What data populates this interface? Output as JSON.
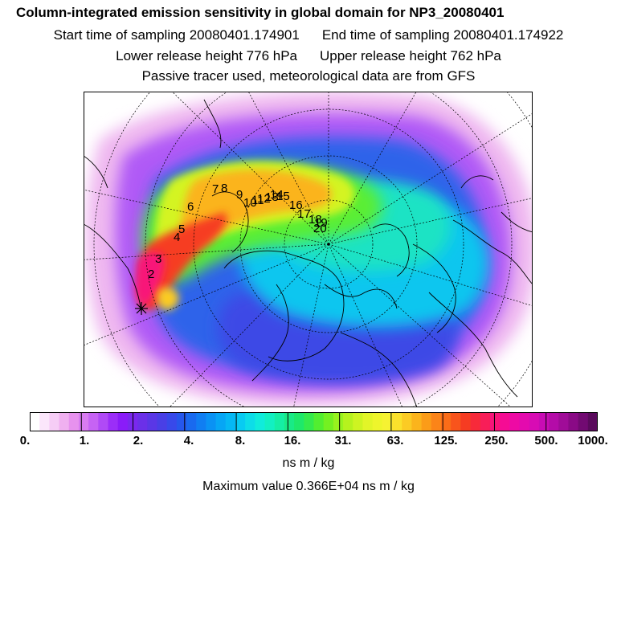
{
  "header": {
    "title": "Column-integrated emission sensitivity in global domain for NP3_20080401",
    "start_time": "Start time of sampling 20080401.174901",
    "end_time": "End time of sampling 20080401.174922",
    "lower_height": "Lower release height  776 hPa",
    "upper_height": "Upper release height  762 hPa",
    "note": "Passive tracer used, meteorological data are from GFS"
  },
  "map": {
    "trajectory_labels": [
      "2",
      "3",
      "4",
      "5",
      "6",
      "7",
      "8",
      "9",
      "10",
      "11",
      "12",
      "13",
      "14",
      "15",
      "16",
      "17",
      "18",
      "19",
      "20"
    ],
    "release_marker": "star-icon",
    "outline_color": "#000000"
  },
  "colorbar": {
    "colors": [
      "#ffffff",
      "#fbe6fb",
      "#f6cdf6",
      "#f0b0f0",
      "#e792ee",
      "#d87cf1",
      "#c663f4",
      "#b04af6",
      "#9b2ef8",
      "#8a1cf8",
      "#7a28ee",
      "#6b30e8",
      "#5a37e6",
      "#493fe6",
      "#3849ea",
      "#2657ec",
      "#196aef",
      "#107ef2",
      "#0a92f4",
      "#06a6f5",
      "#05b8f4",
      "#08cbf2",
      "#0ddde8",
      "#10ecdb",
      "#12f0c2",
      "#15eea4",
      "#19ea86",
      "#1ee86a",
      "#34ea4c",
      "#52ee30",
      "#74f021",
      "#98f21e",
      "#b6f21e",
      "#cef422",
      "#e2f528",
      "#eef52c",
      "#f6f232",
      "#fae12c",
      "#fbcb24",
      "#fbb41c",
      "#fb9c18",
      "#fb8418",
      "#fa6c18",
      "#f8541c",
      "#f63c22",
      "#f72a3a",
      "#f81e58",
      "#f81479",
      "#f50c94",
      "#ee0aa4",
      "#e40aae",
      "#d80cb4",
      "#c80cb4",
      "#b40ca8",
      "#a00c98",
      "#8a0a86",
      "#720a72",
      "#5a0a5c"
    ],
    "ticks": [
      "0.",
      "1.",
      "2.",
      "4.",
      "8.",
      "16.",
      "31.",
      "63.",
      "125.",
      "250.",
      "500.",
      "1000."
    ],
    "units": "ns m / kg",
    "max_value": "Maximum value  0.366E+04 ns m / kg"
  }
}
